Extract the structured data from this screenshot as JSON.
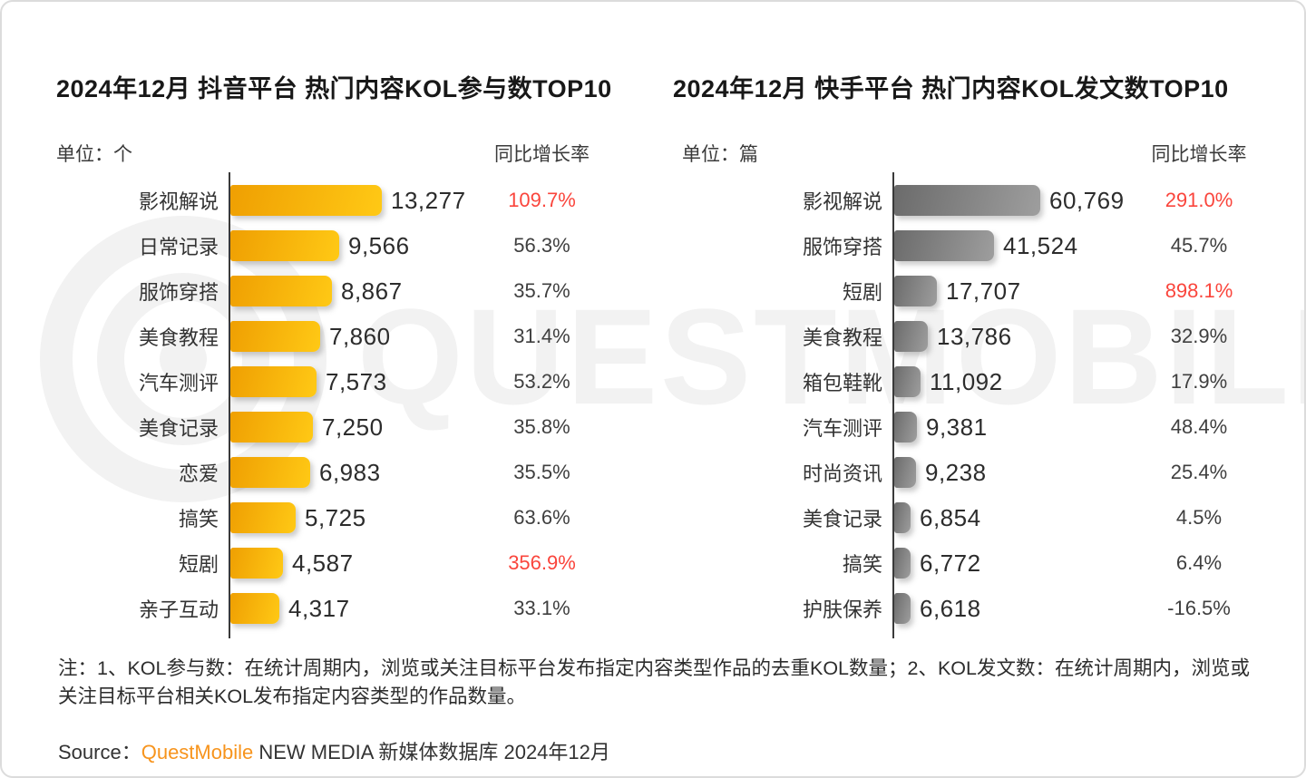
{
  "chart_data": [
    {
      "type": "bar",
      "orientation": "horizontal",
      "title": "2024年12月 抖音平台 热门内容KOL参与数TOP10",
      "unit": "单位：个",
      "growth_header": "同比增长率",
      "categories": [
        "影视解说",
        "日常记录",
        "服饰穿搭",
        "美食教程",
        "汽车测评",
        "美食记录",
        "恋爱",
        "搞笑",
        "短剧",
        "亲子互动"
      ],
      "values": [
        13277,
        9566,
        8867,
        7860,
        7573,
        7250,
        6983,
        5725,
        4587,
        4317
      ],
      "value_labels": [
        "13,277",
        "9,566",
        "8,867",
        "7,860",
        "7,573",
        "7,250",
        "6,983",
        "5,725",
        "4,587",
        "4,317"
      ],
      "growth": [
        "109.7%",
        "56.3%",
        "35.7%",
        "31.4%",
        "53.2%",
        "35.8%",
        "35.5%",
        "63.6%",
        "356.9%",
        "33.1%"
      ],
      "growth_highlight": [
        true,
        false,
        false,
        false,
        false,
        false,
        false,
        false,
        true,
        false
      ],
      "bar_gradient": [
        "#ef9f02",
        "#ffc915"
      ],
      "xlim": [
        0,
        13277
      ],
      "grid": false,
      "legend": "none"
    },
    {
      "type": "bar",
      "orientation": "horizontal",
      "title": "2024年12月 快手平台 热门内容KOL发文数TOP10",
      "unit": "单位：篇",
      "growth_header": "同比增长率",
      "categories": [
        "影视解说",
        "服饰穿搭",
        "短剧",
        "美食教程",
        "箱包鞋靴",
        "汽车测评",
        "时尚资讯",
        "美食记录",
        "搞笑",
        "护肤保养"
      ],
      "values": [
        60769,
        41524,
        17707,
        13786,
        11092,
        9381,
        9238,
        6854,
        6772,
        6618
      ],
      "value_labels": [
        "60,769",
        "41,524",
        "17,707",
        "13,786",
        "11,092",
        "9,381",
        "9,238",
        "6,854",
        "6,772",
        "6,618"
      ],
      "growth": [
        "291.0%",
        "45.7%",
        "898.1%",
        "32.9%",
        "17.9%",
        "48.4%",
        "25.4%",
        "4.5%",
        "6.4%",
        "-16.5%"
      ],
      "growth_highlight": [
        true,
        false,
        true,
        false,
        false,
        false,
        false,
        false,
        false,
        false
      ],
      "bar_gradient": [
        "#6b6b6b",
        "#9e9e9e"
      ],
      "xlim": [
        0,
        60769
      ],
      "grid": false,
      "legend": "none"
    }
  ],
  "colors": {
    "highlight_red": "#fa453c",
    "brand_orange": "#f7941d",
    "watermark_gray": "#f2f2f2",
    "axis_dark": "#3a3a3a"
  },
  "watermark": {
    "text": "QUESTMOBILE"
  },
  "note": {
    "text": "注：1、KOL参与数：在统计周期内，浏览或关注目标平台发布指定内容类型作品的去重KOL数量；2、KOL发文数：在统计周期内，浏览或关注目标平台相关KOL发布指定内容类型的作品数量。"
  },
  "source": {
    "prefix": "Source：",
    "brand": "QuestMobile",
    "suffix": " NEW MEDIA 新媒体数据库 2024年12月"
  }
}
